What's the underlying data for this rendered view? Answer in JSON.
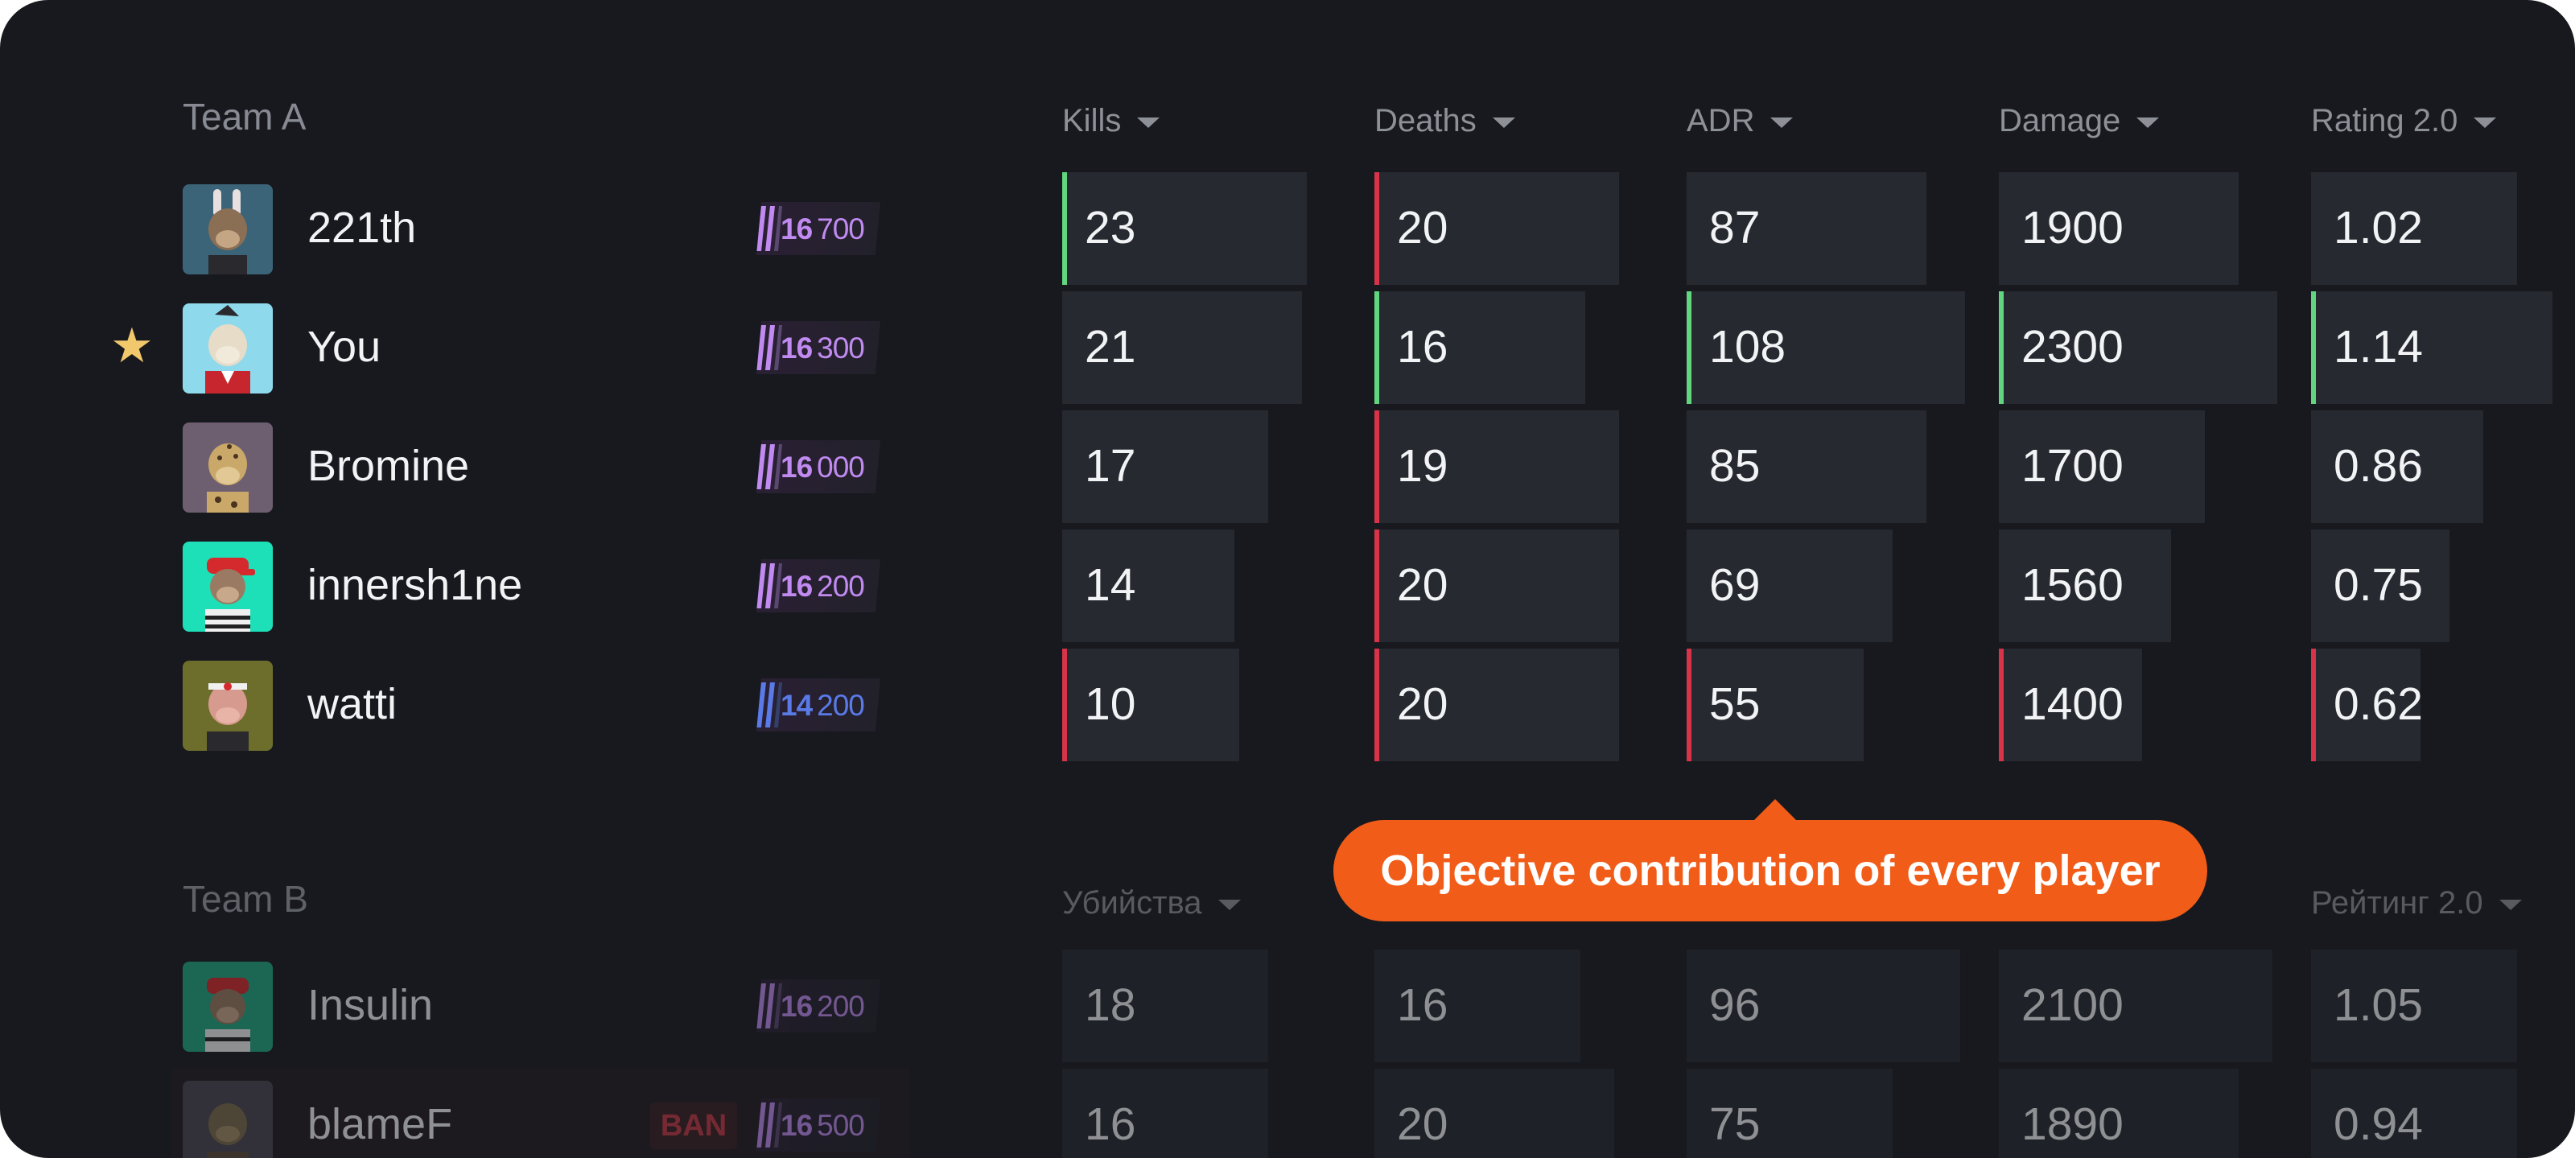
{
  "colors": {
    "panel_bg": "#17191e",
    "cell_bg": "#262930",
    "good": "#62d67f",
    "bad": "#d7344a",
    "accent_tooltip": "#f15c18",
    "elo_purple": "#c08af0",
    "elo_blue": "#5a7ae8",
    "star": "#f2c86c"
  },
  "tooltip": {
    "text": "Objective contribution of every player"
  },
  "team_a": {
    "title": "Team A",
    "headers": [
      "Kills",
      "Deaths",
      "ADR",
      "Damage",
      "Rating 2.0"
    ],
    "players": [
      {
        "name": "221th",
        "avatar": "ape-avatar-bunny-ears",
        "elo_lead": "16",
        "elo_rest": "700",
        "elo_color": "purple",
        "favorite": false,
        "kills": "23",
        "deaths": "20",
        "adr": "87",
        "damage": "1900",
        "rating": "1.02"
      },
      {
        "name": "You",
        "avatar": "ape-avatar-red-jacket",
        "elo_lead": "16",
        "elo_rest": "300",
        "elo_color": "purple",
        "favorite": true,
        "favorite_icon": "star-icon",
        "kills": "21",
        "deaths": "16",
        "adr": "108",
        "damage": "2300",
        "rating": "1.14"
      },
      {
        "name": "Bromine",
        "avatar": "ape-avatar-leopard",
        "elo_lead": "16",
        "elo_rest": "000",
        "elo_color": "purple",
        "favorite": false,
        "kills": "17",
        "deaths": "19",
        "adr": "85",
        "damage": "1700",
        "rating": "0.86"
      },
      {
        "name": "innersh1ne",
        "avatar": "ape-avatar-red-cap",
        "elo_lead": "16",
        "elo_rest": "200",
        "elo_color": "purple",
        "favorite": false,
        "kills": "14",
        "deaths": "20",
        "adr": "69",
        "damage": "1560",
        "rating": "0.75"
      },
      {
        "name": "watti",
        "avatar": "ape-avatar-headband",
        "elo_lead": "14",
        "elo_rest": "200",
        "elo_color": "blue",
        "favorite": false,
        "kills": "10",
        "deaths": "20",
        "adr": "55",
        "damage": "1400",
        "rating": "0.62"
      }
    ]
  },
  "team_b": {
    "title": "Team B",
    "headers_visible": [
      "Убийства",
      "Рейтинг 2.0"
    ],
    "players": [
      {
        "name": "Insulin",
        "avatar": "ape-avatar-red-cap-green",
        "elo_lead": "16",
        "elo_rest": "200",
        "elo_color": "purple",
        "banned": false,
        "kills": "18",
        "deaths": "16",
        "adr": "96",
        "damage": "2100",
        "rating": "1.05"
      },
      {
        "name": "blameF",
        "avatar": "ape-avatar-brown",
        "elo_lead": "16",
        "elo_rest": "500",
        "elo_color": "purple",
        "banned": true,
        "ban_label": "BAN",
        "kills": "16",
        "deaths": "20",
        "adr": "75",
        "damage": "1890",
        "rating": "0.94"
      }
    ]
  }
}
